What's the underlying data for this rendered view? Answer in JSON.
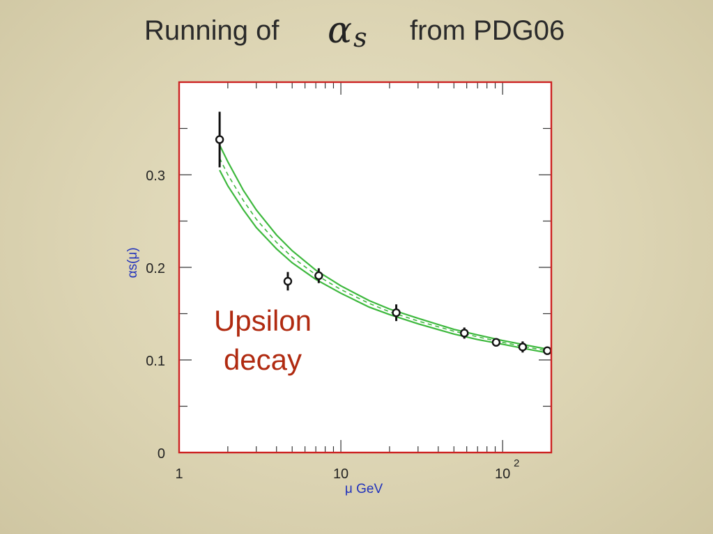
{
  "title": {
    "prefix": "Running of",
    "symbol_main": "α",
    "symbol_sub": "s",
    "suffix": "from PDG06"
  },
  "colors": {
    "frame": "#cc2222",
    "band": "#3db83d",
    "axis_label": "#2233bb",
    "annotation": "#b02a10",
    "data": "#111111"
  },
  "chart_data": {
    "type": "scatter",
    "xlabel": "μ GeV",
    "ylabel": "αs(μ)",
    "xscale": "log",
    "xlim": [
      1,
      200
    ],
    "ylim": [
      0,
      0.4
    ],
    "x_ticks": [
      {
        "value": 1,
        "label": "1"
      },
      {
        "value": 10,
        "label": "10"
      },
      {
        "value": 100,
        "label": "10",
        "sup": "2"
      }
    ],
    "y_ticks": [
      {
        "value": 0,
        "label": "0"
      },
      {
        "value": 0.1,
        "label": "0.1"
      },
      {
        "value": 0.2,
        "label": "0.2"
      },
      {
        "value": 0.3,
        "label": "0.3"
      }
    ],
    "points": [
      {
        "x": 1.78,
        "y": 0.338,
        "err": 0.03
      },
      {
        "x": 4.7,
        "y": 0.185,
        "err": 0.01
      },
      {
        "x": 7.3,
        "y": 0.191,
        "err": 0.008
      },
      {
        "x": 22.0,
        "y": 0.151,
        "err": 0.009
      },
      {
        "x": 58.0,
        "y": 0.129,
        "err": 0.006
      },
      {
        "x": 91.2,
        "y": 0.119,
        "err": 0.003
      },
      {
        "x": 133.0,
        "y": 0.114,
        "err": 0.006
      },
      {
        "x": 189.0,
        "y": 0.11,
        "err": 0.004
      }
    ],
    "band": {
      "x": [
        1.78,
        2,
        2.5,
        3,
        4,
        5,
        7,
        10,
        15,
        20,
        30,
        50,
        70,
        100,
        150,
        200
      ],
      "upper": [
        0.332,
        0.314,
        0.283,
        0.262,
        0.235,
        0.218,
        0.197,
        0.18,
        0.164,
        0.155,
        0.145,
        0.133,
        0.127,
        0.121,
        0.115,
        0.111
      ],
      "central": [
        0.318,
        0.3,
        0.272,
        0.252,
        0.227,
        0.211,
        0.192,
        0.176,
        0.161,
        0.152,
        0.142,
        0.131,
        0.125,
        0.119,
        0.113,
        0.109
      ],
      "lower": [
        0.305,
        0.288,
        0.262,
        0.243,
        0.22,
        0.205,
        0.187,
        0.172,
        0.157,
        0.149,
        0.139,
        0.128,
        0.122,
        0.117,
        0.111,
        0.107
      ]
    },
    "annotation": [
      "Upsilon",
      "decay"
    ]
  }
}
